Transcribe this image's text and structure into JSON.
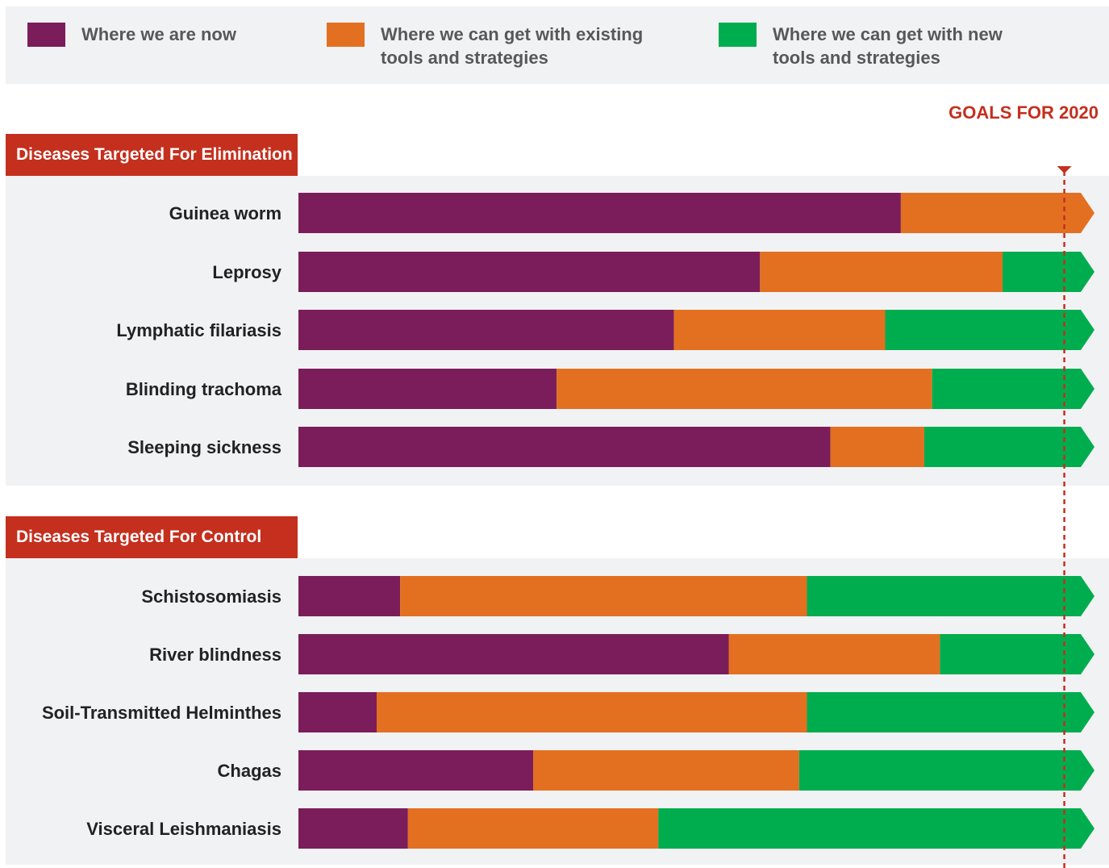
{
  "legend": [
    {
      "label": "Where we are now",
      "color": "#7b1d5a"
    },
    {
      "label": "Where we can get with existing\ntools and strategies",
      "color": "#e37021"
    },
    {
      "label": "Where we can get with new\n tools and strategies",
      "color": "#00ad4e"
    }
  ],
  "goal_label": "GOALS FOR 2020",
  "sections": [
    {
      "title": "Diseases Targeted For Elimination"
    },
    {
      "title": "Diseases Targeted For Control"
    }
  ],
  "colors": {
    "now": "#7b1d5a",
    "existing": "#e37021",
    "new": "#00ad4e",
    "goal_line": "#c42f1e",
    "panel": "#f1f2f4"
  },
  "chart_data": {
    "type": "bar",
    "orientation": "horizontal",
    "stacked": true,
    "xlim": [
      0,
      100
    ],
    "goal_value": 98,
    "groups": [
      {
        "title": "Diseases Targeted For Elimination",
        "categories": [
          "Guinea worm",
          "Leprosy",
          "Lymphatic filariasis",
          "Blinding trachoma",
          "Sleeping sickness"
        ],
        "series": [
          {
            "name": "Where we are now",
            "values": [
              77,
              59,
              48,
              33,
              68
            ]
          },
          {
            "name": "Where we can get with existing tools and strategies",
            "values": [
              23,
              31,
              27,
              48,
              12
            ]
          },
          {
            "name": "Where we can get with new tools and strategies",
            "values": [
              0,
              10,
              25,
              19,
              20
            ]
          }
        ]
      },
      {
        "title": "Diseases Targeted For Control",
        "categories": [
          "Schistosomiasis",
          "River blindness",
          "Soil-Transmitted Helminthes",
          "Chagas",
          "Visceral Leishmaniasis"
        ],
        "series": [
          {
            "name": "Where we are now",
            "values": [
              13,
              55,
              10,
              30,
              14
            ]
          },
          {
            "name": "Where we can get with existing tools and strategies",
            "values": [
              52,
              27,
              55,
              34,
              32
            ]
          },
          {
            "name": "Where we can get with new tools and strategies",
            "values": [
              35,
              18,
              35,
              36,
              54
            ]
          }
        ]
      }
    ]
  }
}
